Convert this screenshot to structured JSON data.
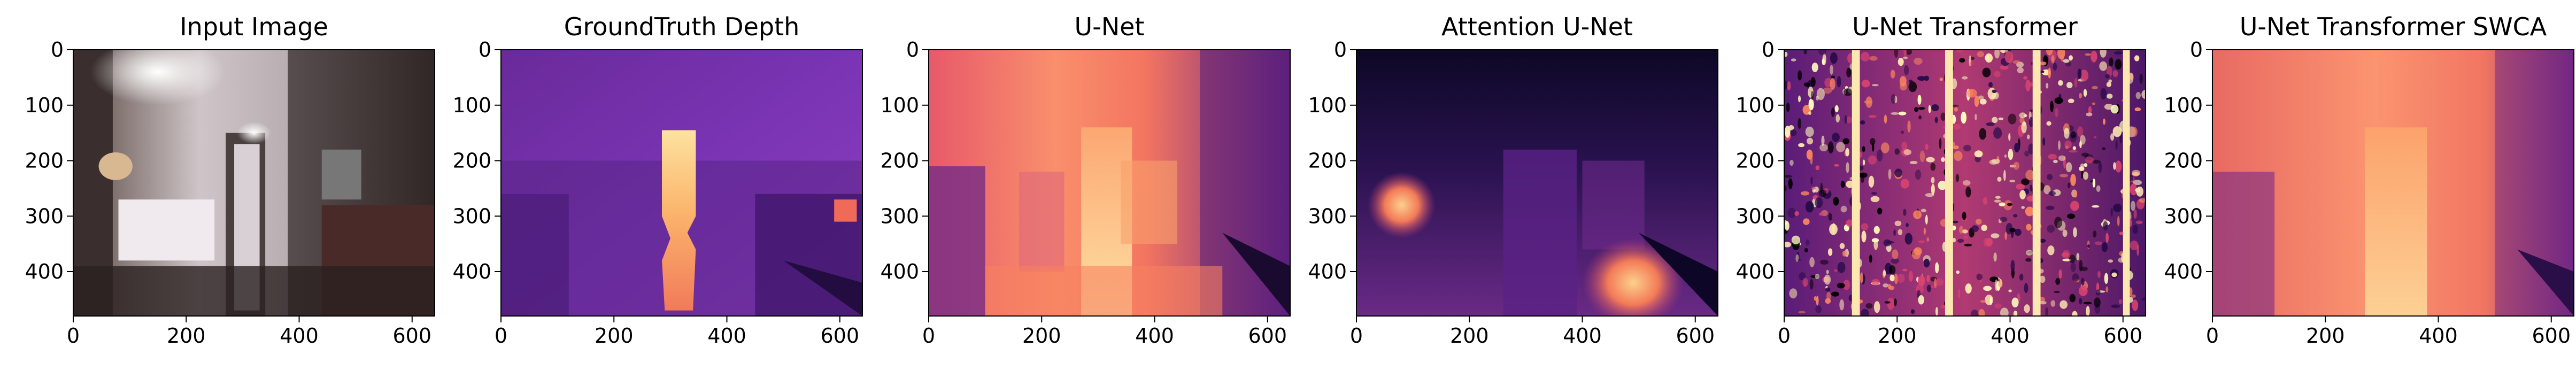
{
  "chart_data": [
    {
      "type": "heatmap",
      "title": "Input Image",
      "xlim": [
        0,
        640
      ],
      "ylim": [
        480,
        0
      ],
      "x_ticks": [
        0,
        200,
        400,
        600
      ],
      "x_tick_labels": [
        "0",
        "200",
        "400",
        "600"
      ],
      "y_ticks": [
        0,
        100,
        200,
        300,
        400
      ],
      "y_tick_labels": [
        "0",
        "100",
        "200",
        "300",
        "400"
      ],
      "colormap": "rgb"
    },
    {
      "type": "heatmap",
      "title": "GroundTruth Depth",
      "xlim": [
        0,
        640
      ],
      "ylim": [
        480,
        0
      ],
      "x_ticks": [
        0,
        200,
        400,
        600
      ],
      "x_tick_labels": [
        "0",
        "200",
        "400",
        "600"
      ],
      "y_ticks": [
        0,
        100,
        200,
        300,
        400
      ],
      "y_tick_labels": [
        "0",
        "100",
        "200",
        "300",
        "400"
      ],
      "colormap": "magma"
    },
    {
      "type": "heatmap",
      "title": "U-Net",
      "xlim": [
        0,
        640
      ],
      "ylim": [
        480,
        0
      ],
      "x_ticks": [
        0,
        200,
        400,
        600
      ],
      "x_tick_labels": [
        "0",
        "200",
        "400",
        "600"
      ],
      "y_ticks": [
        0,
        100,
        200,
        300,
        400
      ],
      "y_tick_labels": [
        "0",
        "100",
        "200",
        "300",
        "400"
      ],
      "colormap": "magma"
    },
    {
      "type": "heatmap",
      "title": "Attention U-Net",
      "xlim": [
        0,
        640
      ],
      "ylim": [
        480,
        0
      ],
      "x_ticks": [
        0,
        200,
        400,
        600
      ],
      "x_tick_labels": [
        "0",
        "200",
        "400",
        "600"
      ],
      "y_ticks": [
        0,
        100,
        200,
        300,
        400
      ],
      "y_tick_labels": [
        "0",
        "100",
        "200",
        "300",
        "400"
      ],
      "colormap": "magma"
    },
    {
      "type": "heatmap",
      "title": "U-Net Transformer",
      "xlim": [
        0,
        640
      ],
      "ylim": [
        480,
        0
      ],
      "x_ticks": [
        0,
        200,
        400,
        600
      ],
      "x_tick_labels": [
        "0",
        "200",
        "400",
        "600"
      ],
      "y_ticks": [
        0,
        100,
        200,
        300,
        400
      ],
      "y_tick_labels": [
        "0",
        "100",
        "200",
        "300",
        "400"
      ],
      "colormap": "magma"
    },
    {
      "type": "heatmap",
      "title": "U-Net Transformer SWCA",
      "xlim": [
        0,
        640
      ],
      "ylim": [
        480,
        0
      ],
      "x_ticks": [
        0,
        200,
        400,
        600
      ],
      "x_tick_labels": [
        "0",
        "200",
        "400",
        "600"
      ],
      "y_ticks": [
        0,
        100,
        200,
        300,
        400
      ],
      "y_tick_labels": [
        "0",
        "100",
        "200",
        "300",
        "400"
      ],
      "colormap": "magma"
    }
  ]
}
